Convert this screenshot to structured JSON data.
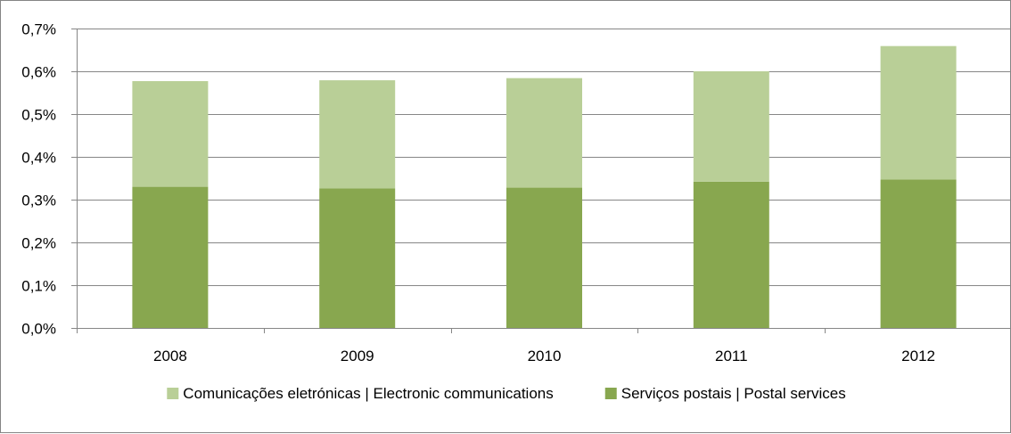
{
  "chart_data": {
    "type": "bar",
    "stacked": true,
    "categories": [
      "2008",
      "2009",
      "2010",
      "2011",
      "2012"
    ],
    "series": [
      {
        "name": "Serviços postais | Postal services",
        "color": "#88a74f",
        "values": [
          0.33,
          0.326,
          0.328,
          0.342,
          0.347
        ]
      },
      {
        "name": "Comunicações eletrónicas | Electronic communications",
        "color": "#b9cf97",
        "values": [
          0.247,
          0.253,
          0.256,
          0.258,
          0.312
        ]
      }
    ],
    "ylim": [
      0,
      0.7
    ],
    "yticks": [
      0,
      0.1,
      0.2,
      0.3,
      0.4,
      0.5,
      0.6,
      0.7
    ],
    "ytick_labels": [
      "0,0%",
      "0,1%",
      "0,2%",
      "0,3%",
      "0,4%",
      "0,5%",
      "0,6%",
      "0,7%"
    ],
    "grid": true,
    "legend_position": "bottom",
    "legend_order": [
      1,
      0
    ],
    "title": "",
    "xlabel": "",
    "ylabel": ""
  }
}
